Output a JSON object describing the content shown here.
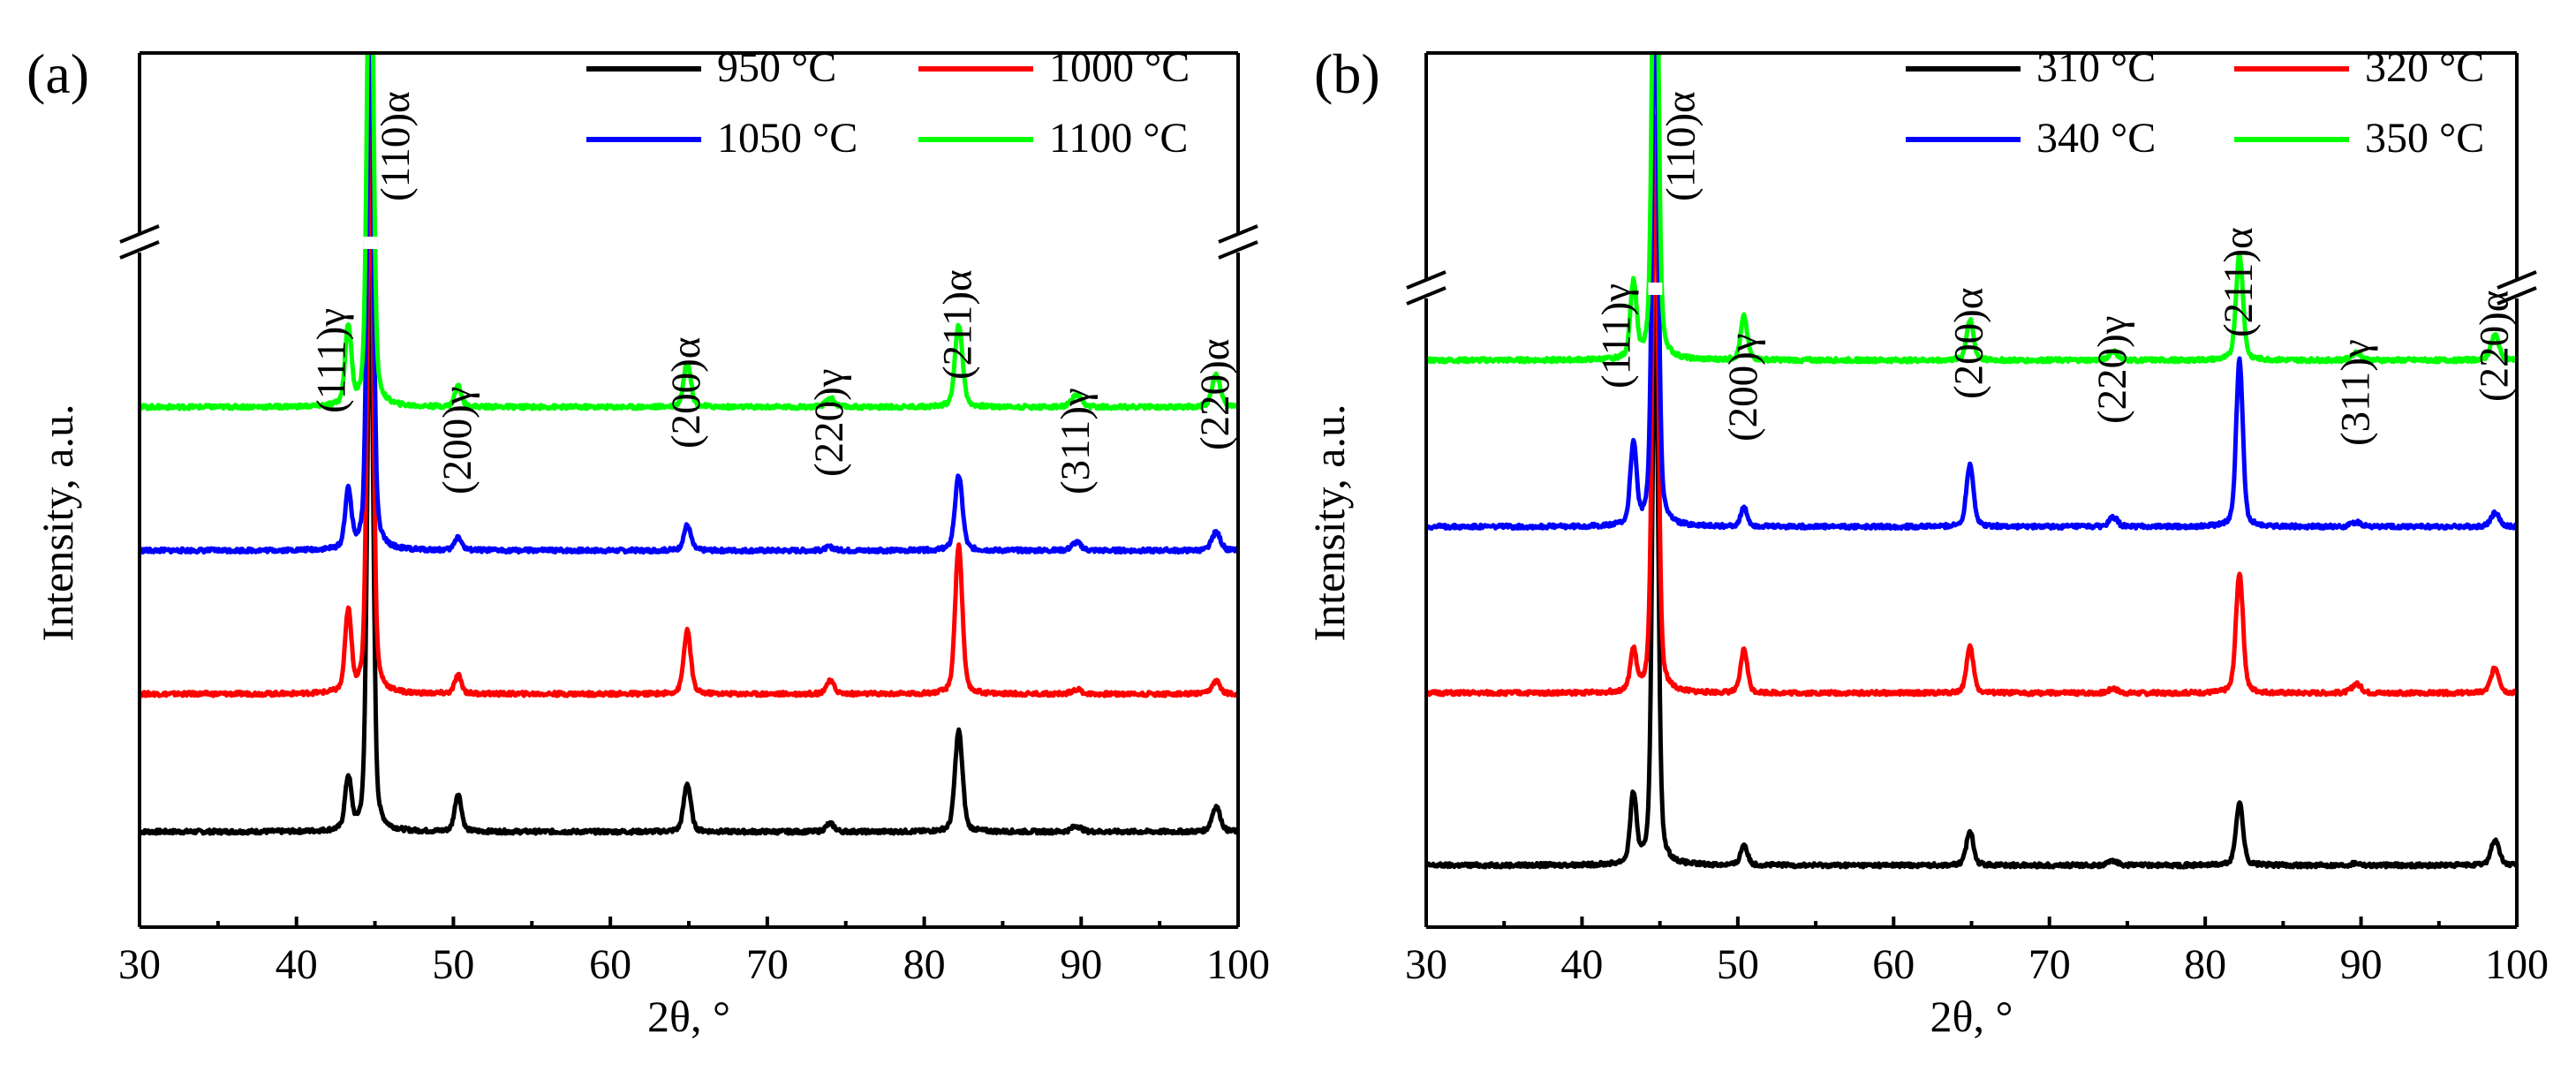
{
  "colors": {
    "black": "#000000",
    "red": "#ff0000",
    "blue": "#0000ff",
    "green": "#00ff00"
  },
  "chart_data": [
    {
      "type": "line",
      "panel_label": "(a)",
      "xlabel": "2θ, °",
      "ylabel": "Intensity, a.u.",
      "xlim": [
        30,
        100
      ],
      "xticks": [
        30,
        40,
        50,
        60,
        70,
        80,
        90,
        100
      ],
      "x_minor_ticks": [
        35,
        45,
        55,
        65,
        75,
        85,
        95
      ],
      "y_ticks_visible": false,
      "y_axis_break": true,
      "legend": {
        "placement": "top-right",
        "columns": 2
      },
      "peaks": [
        {
          "label": "(111)γ",
          "x": 43.3
        },
        {
          "label": "(110)α",
          "x": 44.7
        },
        {
          "label": "(200)γ",
          "x": 50.3
        },
        {
          "label": "(200)α",
          "x": 64.9
        },
        {
          "label": "(220)γ",
          "x": 74.0
        },
        {
          "label": "(211)α",
          "x": 82.2
        },
        {
          "label": "(311)γ",
          "x": 89.7
        },
        {
          "label": "(220)α",
          "x": 98.6
        }
      ],
      "series": [
        {
          "name": "950 °C",
          "color": "#000000",
          "baseline": 0.0,
          "peak_heights": [
            0.45,
            5.0,
            0.33,
            0.42,
            0.07,
            0.88,
            0.05,
            0.22
          ],
          "peak_widths": [
            0.3,
            0.28,
            0.32,
            0.34,
            0.4,
            0.36,
            0.45,
            0.4
          ]
        },
        {
          "name": "1000 °C",
          "color": "#ff0000",
          "baseline": 1.2,
          "peak_heights": [
            0.7,
            5.0,
            0.16,
            0.55,
            0.11,
            1.3,
            0.04,
            0.11
          ],
          "peak_widths": [
            0.3,
            0.28,
            0.32,
            0.34,
            0.4,
            0.34,
            0.45,
            0.4
          ]
        },
        {
          "name": "1050 °C",
          "color": "#0000ff",
          "baseline": 2.45,
          "peak_heights": [
            0.5,
            5.0,
            0.12,
            0.22,
            0.03,
            0.65,
            0.07,
            0.16
          ],
          "peak_widths": [
            0.3,
            0.28,
            0.32,
            0.34,
            0.4,
            0.36,
            0.45,
            0.4
          ]
        },
        {
          "name": "1100 °C",
          "color": "#00ff00",
          "baseline": 3.7,
          "peak_heights": [
            0.68,
            5.0,
            0.18,
            0.4,
            0.08,
            0.72,
            0.1,
            0.28
          ],
          "peak_widths": [
            0.3,
            0.28,
            0.32,
            0.34,
            0.4,
            0.36,
            0.45,
            0.4
          ]
        }
      ]
    },
    {
      "type": "line",
      "panel_label": "(b)",
      "xlabel": "2θ, °",
      "ylabel": "Intensity, a.u.",
      "xlim": [
        30,
        100
      ],
      "xticks": [
        30,
        40,
        50,
        60,
        70,
        80,
        90,
        100
      ],
      "x_minor_ticks": [
        35,
        45,
        55,
        65,
        75,
        85,
        95
      ],
      "y_ticks_visible": false,
      "y_axis_break": true,
      "legend": {
        "placement": "top-right",
        "columns": 2
      },
      "peaks": [
        {
          "label": "(111)γ",
          "x": 43.3
        },
        {
          "label": "(110)α",
          "x": 44.7
        },
        {
          "label": "(200)γ",
          "x": 50.4
        },
        {
          "label": "(200)α",
          "x": 64.9
        },
        {
          "label": "(220)γ",
          "x": 74.1
        },
        {
          "label": "(211)α",
          "x": 82.2
        },
        {
          "label": "(311)γ",
          "x": 89.7
        },
        {
          "label": "(220)α",
          "x": 98.6
        }
      ],
      "series": [
        {
          "name": "310 °C",
          "color": "#000000",
          "baseline": 0.0,
          "peak_heights": [
            0.6,
            5.0,
            0.18,
            0.3,
            0.04,
            0.55,
            0.02,
            0.22
          ],
          "peak_widths": [
            0.3,
            0.28,
            0.32,
            0.34,
            0.4,
            0.34,
            0.45,
            0.4
          ]
        },
        {
          "name": "320 °C",
          "color": "#ff0000",
          "baseline": 1.5,
          "peak_heights": [
            0.35,
            5.0,
            0.38,
            0.4,
            0.04,
            1.05,
            0.08,
            0.22
          ],
          "peak_widths": [
            0.3,
            0.28,
            0.32,
            0.34,
            0.4,
            0.34,
            0.45,
            0.4
          ]
        },
        {
          "name": "340 °C",
          "color": "#0000ff",
          "baseline": 2.95,
          "peak_heights": [
            0.7,
            5.0,
            0.16,
            0.55,
            0.08,
            1.45,
            0.04,
            0.12
          ],
          "peak_widths": [
            0.3,
            0.28,
            0.32,
            0.34,
            0.4,
            0.32,
            0.45,
            0.4
          ]
        },
        {
          "name": "350 °C",
          "color": "#00ff00",
          "baseline": 4.4,
          "peak_heights": [
            0.65,
            5.0,
            0.38,
            0.35,
            0.08,
            0.92,
            0.07,
            0.22
          ],
          "peak_widths": [
            0.3,
            0.28,
            0.32,
            0.34,
            0.4,
            0.34,
            0.45,
            0.4
          ]
        }
      ]
    }
  ]
}
